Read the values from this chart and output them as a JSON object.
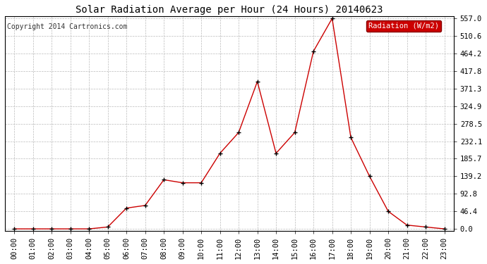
{
  "title": "Solar Radiation Average per Hour (24 Hours) 20140623",
  "copyright": "Copyright 2014 Cartronics.com",
  "legend_label": "Radiation (W/m2)",
  "hours": [
    "00:00",
    "01:00",
    "02:00",
    "03:00",
    "04:00",
    "05:00",
    "06:00",
    "07:00",
    "08:00",
    "09:00",
    "10:00",
    "11:00",
    "12:00",
    "13:00",
    "14:00",
    "15:00",
    "16:00",
    "17:00",
    "18:00",
    "19:00",
    "20:00",
    "21:00",
    "22:00",
    "23:00"
  ],
  "values": [
    0.0,
    0.0,
    0.0,
    0.0,
    0.0,
    5.0,
    55.0,
    62.0,
    130.0,
    122.0,
    122.0,
    200.0,
    255.0,
    390.0,
    200.0,
    255.0,
    470.0,
    557.0,
    242.0,
    139.2,
    46.4,
    10.0,
    5.0,
    0.0
  ],
  "line_color": "#cc0000",
  "marker_color": "#000000",
  "bg_color": "#ffffff",
  "grid_color": "#bbbbbb",
  "yticks": [
    0.0,
    46.4,
    92.8,
    139.2,
    185.7,
    232.1,
    278.5,
    324.9,
    371.3,
    417.8,
    464.2,
    510.6,
    557.0
  ],
  "ymax": 557.0,
  "ymin": 0.0,
  "legend_bg": "#cc0000",
  "legend_text_color": "#ffffff",
  "title_fontsize": 10,
  "tick_fontsize": 7.5,
  "copyright_fontsize": 7
}
